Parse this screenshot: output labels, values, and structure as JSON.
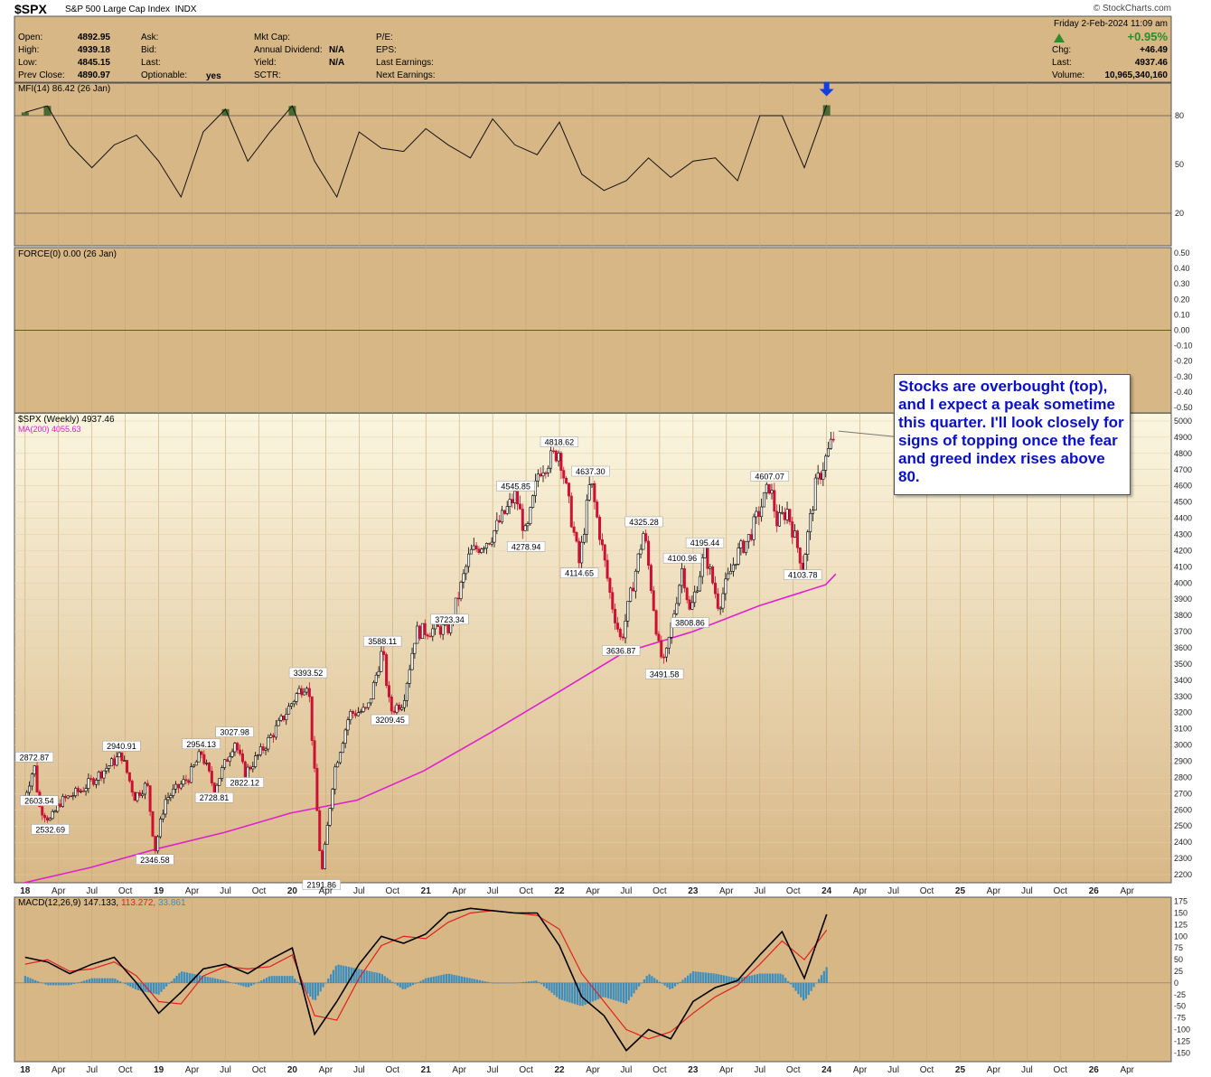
{
  "header": {
    "symbol": "$SPX",
    "name": "S&P 500 Large Cap Index",
    "exchange": "INDX",
    "copyright": "© StockCharts.com"
  },
  "quote": {
    "open_label": "Open:",
    "open": "4892.95",
    "high_label": "High:",
    "high": "4939.18",
    "low_label": "Low:",
    "low": "4845.15",
    "prevclose_label": "Prev Close:",
    "prevclose": "4890.97",
    "ask_label": "Ask:",
    "bid_label": "Bid:",
    "last_label": "Last:",
    "optionable_label": "Optionable:",
    "optionable": "yes",
    "mktcap_label": "Mkt Cap:",
    "dividend_label": "Annual Dividend:",
    "dividend": "N/A",
    "yield_label": "Yield:",
    "yield": "N/A",
    "sctr_label": "SCTR:",
    "pe_label": "P/E:",
    "eps_label": "EPS:",
    "lastearn_label": "Last Earnings:",
    "nextearn_label": "Next Earnings:",
    "date": "Friday  2-Feb-2024  11:09 am",
    "pct": "+0.95%",
    "chg_label": "Chg:",
    "chg": "+46.49",
    "last2_label": "Last:",
    "last": "4937.46",
    "volume_label": "Volume:",
    "volume": "10,965,340,160"
  },
  "colors": {
    "panel_bg": "#d8b786",
    "price_bg_top": "#fbf6e0",
    "price_bg_bottom": "#d8b786",
    "up_candle": "#000000",
    "down_candle": "#cc1133",
    "ma": "#e020d0",
    "macd_line": "#000000",
    "signal_line": "#e02020",
    "histogram": "#3a8ec0",
    "annotation_text": "#0a10c8",
    "mfi_fill": "#4a6a30",
    "arrow": "#1040e0"
  },
  "annotation": {
    "text": "Stocks are overbought (top), and I expect a peak sometime this quarter. I'll look closely for signs of topping once the fear and greed index rises above 80."
  },
  "chart_data": [
    {
      "type": "line",
      "panel": "MFI",
      "legend": "MFI(14) 86.42 (26 Jan)",
      "ylim": [
        0,
        100
      ],
      "y_ticks": [
        20,
        50,
        80
      ],
      "reference_lines": [
        20,
        80
      ],
      "overbought_marker": "down-arrow",
      "x": [
        "2018-01",
        "2018-03",
        "2018-05",
        "2018-07",
        "2018-09",
        "2018-11",
        "2019-01",
        "2019-03",
        "2019-05",
        "2019-07",
        "2019-09",
        "2019-11",
        "2020-01",
        "2020-03",
        "2020-05",
        "2020-07",
        "2020-09",
        "2020-11",
        "2021-01",
        "2021-03",
        "2021-05",
        "2021-07",
        "2021-09",
        "2021-11",
        "2022-01",
        "2022-03",
        "2022-05",
        "2022-07",
        "2022-09",
        "2022-11",
        "2023-01",
        "2023-03",
        "2023-05",
        "2023-07",
        "2023-09",
        "2023-11",
        "2024-01"
      ],
      "values": [
        82,
        86,
        62,
        48,
        62,
        68,
        52,
        30,
        70,
        84,
        52,
        70,
        86,
        52,
        30,
        70,
        60,
        58,
        72,
        62,
        54,
        78,
        62,
        56,
        76,
        44,
        34,
        40,
        54,
        42,
        52,
        54,
        40,
        80,
        80,
        48,
        86.42
      ]
    },
    {
      "type": "line",
      "panel": "FORCE",
      "legend": "FORCE(0) 0.00 (26 Jan)",
      "ylim": [
        -0.5,
        0.5
      ],
      "y_ticks": [
        0.5,
        0.4,
        0.3,
        0.2,
        0.1,
        0.0,
        -0.1,
        -0.2,
        -0.3,
        -0.4,
        -0.5
      ],
      "y_tick_labels": [
        "0.50",
        "0.40",
        "0.30",
        "0.20",
        "0.10",
        "0.00",
        "-0.10",
        "-0.20",
        "-0.30",
        "-0.40",
        "-0.50"
      ],
      "values": [
        0.0
      ]
    },
    {
      "type": "line",
      "panel": "Price",
      "subtype": "candlestick",
      "legend": "$SPX (Weekly) 4937.46",
      "ma_legend": "MA(200) 4055.63",
      "ylim": [
        2150,
        5050
      ],
      "y_ticks": [
        2200,
        2300,
        2400,
        2500,
        2600,
        2700,
        2800,
        2900,
        3000,
        3100,
        3200,
        3300,
        3400,
        3500,
        3600,
        3700,
        3800,
        3900,
        4000,
        4100,
        4200,
        4300,
        4400,
        4500,
        4600,
        4700,
        4800,
        4900,
        5000
      ],
      "x_tick_labels": [
        "18",
        "Apr",
        "Jul",
        "Oct",
        "19",
        "Apr",
        "Jul",
        "Oct",
        "20",
        "Apr",
        "Jul",
        "Oct",
        "21",
        "Apr",
        "Jul",
        "Oct",
        "22",
        "Apr",
        "Jul",
        "Oct",
        "23",
        "Apr",
        "Jul",
        "Oct",
        "24",
        "Apr",
        "Jul",
        "Oct",
        "25",
        "Apr",
        "Jul",
        "Oct",
        "26",
        "Apr"
      ],
      "x_tick_dates": [
        "2018-01",
        "2018-04",
        "2018-07",
        "2018-10",
        "2019-01",
        "2019-04",
        "2019-07",
        "2019-10",
        "2020-01",
        "2020-04",
        "2020-07",
        "2020-10",
        "2021-01",
        "2021-04",
        "2021-07",
        "2021-10",
        "2022-01",
        "2022-04",
        "2022-07",
        "2022-10",
        "2023-01",
        "2023-04",
        "2023-07",
        "2023-10",
        "2024-01",
        "2024-04",
        "2024-07",
        "2024-10",
        "2025-01",
        "2025-04",
        "2025-07",
        "2025-10",
        "2026-01",
        "2026-04"
      ],
      "x": [
        "2017-12-29",
        "2018-01-26",
        "2018-02-09",
        "2018-03-09",
        "2018-04-06",
        "2018-06-01",
        "2018-08-31",
        "2018-09-21",
        "2018-10-26",
        "2018-11-30",
        "2018-12-21",
        "2019-01-18",
        "2019-03-22",
        "2019-04-26",
        "2019-05-31",
        "2019-07-26",
        "2019-08-23",
        "2019-10-04",
        "2019-11-29",
        "2020-01-17",
        "2020-02-14",
        "2020-03-20",
        "2020-04-24",
        "2020-06-05",
        "2020-07-24",
        "2020-09-04",
        "2020-09-25",
        "2020-10-30",
        "2020-12-04",
        "2021-01-29",
        "2021-03-05",
        "2021-04-30",
        "2021-06-25",
        "2021-09-03",
        "2021-10-01",
        "2021-11-05",
        "2021-12-31",
        "2022-02-25",
        "2022-03-25",
        "2022-05-20",
        "2022-06-17",
        "2022-08-19",
        "2022-09-30",
        "2022-10-14",
        "2022-12-02",
        "2022-12-23",
        "2023-02-03",
        "2023-03-10",
        "2023-04-28",
        "2023-06-02",
        "2023-07-28",
        "2023-08-18",
        "2023-09-15",
        "2023-10-27",
        "2023-12-01",
        "2024-01-26"
      ],
      "values": [
        2674,
        2872.87,
        2620,
        2532.69,
        2650,
        2720,
        2900,
        2940.91,
        2680,
        2760,
        2346.58,
        2660,
        2800,
        2954.13,
        2728.81,
        3027.98,
        2822.12,
        2950,
        3140,
        3329,
        3393.52,
        2191.86,
        2840,
        3193,
        3215,
        3588.11,
        3209.45,
        3270,
        3699,
        3714,
        3723.34,
        4181,
        4280,
        4545.85,
        4278.94,
        4697,
        4818.62,
        4114.65,
        4637.3,
        3900,
        3636.87,
        4325.28,
        3585,
        3491.58,
        4100.96,
        3808.86,
        4195.44,
        3860,
        4170,
        4282,
        4607.07,
        4370,
        4450,
        4103.78,
        4594,
        4937.46
      ],
      "ma_series": {
        "name": "MA(200)",
        "x": [
          "2017-12-29",
          "2018-06-29",
          "2018-12-28",
          "2019-06-28",
          "2019-12-27",
          "2020-06-26",
          "2020-12-25",
          "2021-06-25",
          "2021-12-31",
          "2022-06-24",
          "2022-12-30",
          "2023-06-30",
          "2023-12-29",
          "2024-01-26"
        ],
        "values": [
          2150,
          2245,
          2360,
          2460,
          2580,
          2660,
          2840,
          3075,
          3330,
          3570,
          3700,
          3860,
          3990,
          4055.63
        ]
      },
      "annotations": [
        "2872.87",
        "2532.69",
        "2940.91",
        "2603.54",
        "2346.58",
        "2954.13",
        "2728.81",
        "3027.98",
        "2822.12",
        "3393.52",
        "2191.86",
        "3588.11",
        "3209.45",
        "3723.34",
        "4545.85",
        "4278.94",
        "4818.62",
        "4114.65",
        "4637.30",
        "3636.87",
        "4325.28",
        "3491.58",
        "4100.96",
        "4195.44",
        "3808.86",
        "4607.07",
        "4103.78"
      ]
    },
    {
      "type": "line",
      "panel": "MACD",
      "legend_label": "MACD(12,26,9)",
      "legend_macd": "147.133,",
      "legend_signal": "113.272,",
      "legend_hist": "33.861",
      "ylim": [
        -165,
        180
      ],
      "y_ticks": [
        175,
        150,
        125,
        100,
        75,
        50,
        25,
        0,
        -25,
        -50,
        -75,
        -100,
        -125,
        -150
      ],
      "y_tick_labels": [
        "175",
        "150",
        "125",
        "100",
        "75",
        "50",
        "25",
        "0",
        "-25",
        "-50",
        "-75",
        "-100",
        "-125",
        "-150"
      ],
      "x": [
        "2018-01",
        "2018-03",
        "2018-05",
        "2018-07",
        "2018-09",
        "2018-11",
        "2019-01",
        "2019-03",
        "2019-05",
        "2019-07",
        "2019-09",
        "2019-11",
        "2020-01",
        "2020-03",
        "2020-05",
        "2020-07",
        "2020-09",
        "2020-11",
        "2021-01",
        "2021-03",
        "2021-05",
        "2021-07",
        "2021-09",
        "2021-11",
        "2022-01",
        "2022-03",
        "2022-05",
        "2022-07",
        "2022-09",
        "2022-11",
        "2023-01",
        "2023-03",
        "2023-05",
        "2023-07",
        "2023-09",
        "2023-11",
        "2024-01"
      ],
      "series": [
        {
          "name": "MACD",
          "values": [
            55,
            45,
            20,
            40,
            55,
            0,
            -65,
            -20,
            30,
            40,
            20,
            50,
            75,
            -110,
            -40,
            40,
            100,
            85,
            105,
            150,
            160,
            155,
            150,
            150,
            80,
            -30,
            -70,
            -145,
            -100,
            -120,
            -40,
            -10,
            5,
            60,
            110,
            10,
            147.133
          ]
        },
        {
          "name": "Signal",
          "values": [
            40,
            50,
            25,
            30,
            45,
            15,
            -40,
            -45,
            15,
            35,
            30,
            35,
            60,
            -70,
            -80,
            10,
            80,
            100,
            95,
            130,
            150,
            155,
            150,
            145,
            115,
            20,
            -40,
            -100,
            -120,
            -105,
            -65,
            -30,
            -5,
            40,
            90,
            50,
            113.272
          ]
        },
        {
          "name": "Histogram",
          "values": [
            15,
            -5,
            -5,
            10,
            10,
            -15,
            -25,
            25,
            15,
            5,
            -10,
            15,
            15,
            -40,
            40,
            30,
            20,
            -15,
            10,
            20,
            10,
            0,
            0,
            5,
            -35,
            -50,
            -30,
            -45,
            20,
            -15,
            25,
            20,
            10,
            20,
            20,
            -40,
            33.861
          ]
        }
      ]
    }
  ]
}
